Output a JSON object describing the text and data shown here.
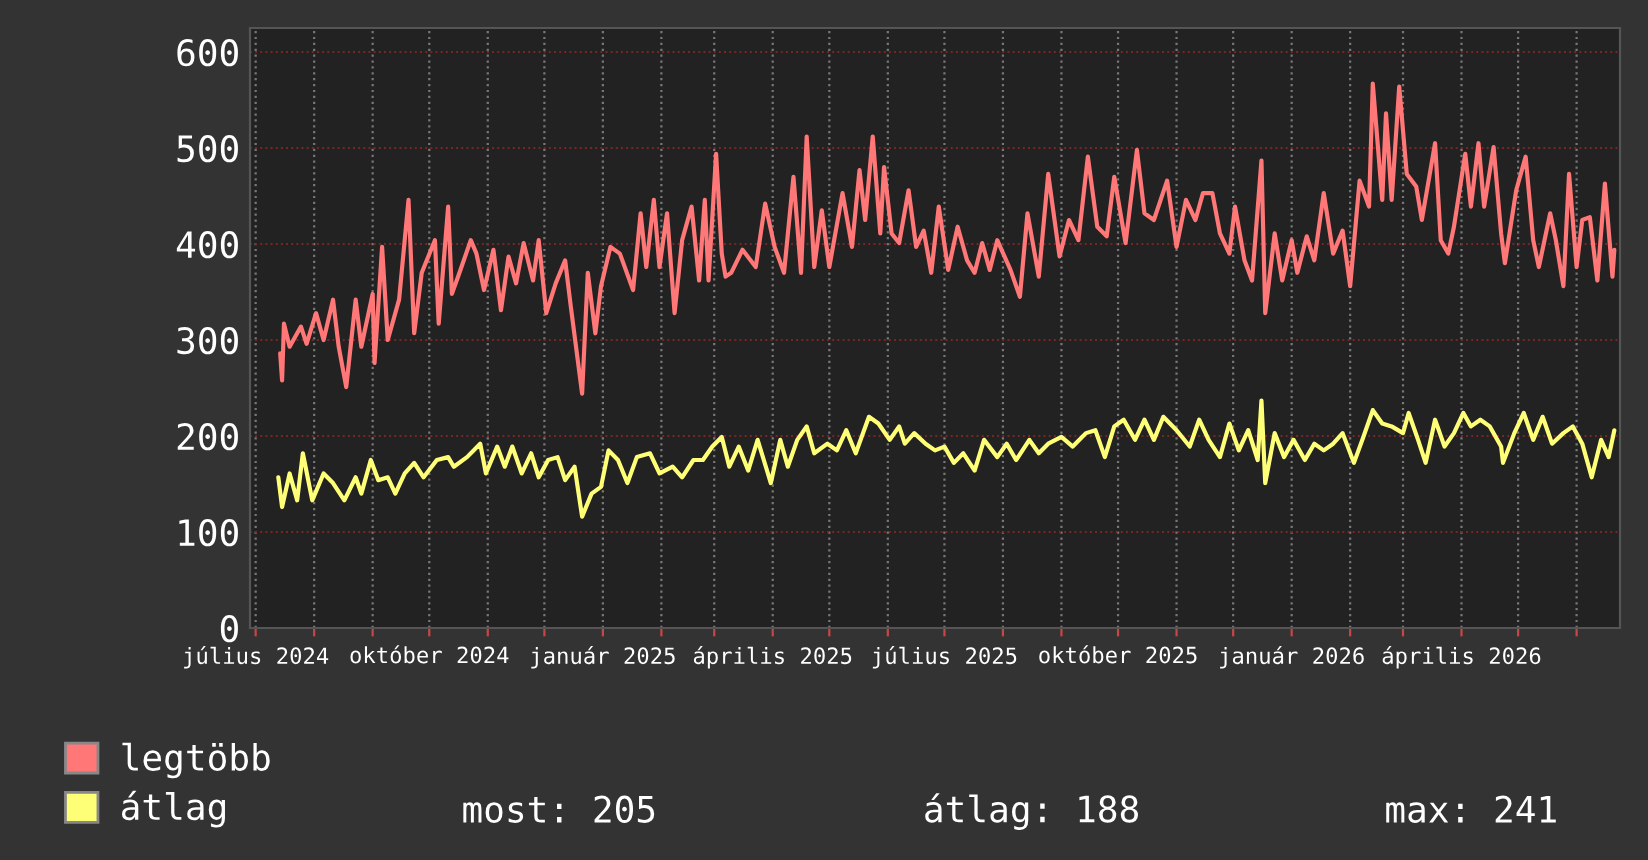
{
  "chart_data": {
    "type": "line",
    "xlim": [
      "2024-06-28",
      "2026-06-24"
    ],
    "ylim": [
      0,
      625
    ],
    "yticks": [
      0,
      100,
      200,
      300,
      400,
      500,
      600
    ],
    "xticks": [
      {
        "value": "2024-07-01",
        "label": "július 2024"
      },
      {
        "value": "2024-08-01",
        "label": null
      },
      {
        "value": "2024-09-01",
        "label": null
      },
      {
        "value": "2024-10-01",
        "label": "október 2024"
      },
      {
        "value": "2024-11-01",
        "label": null
      },
      {
        "value": "2024-12-01",
        "label": null
      },
      {
        "value": "2025-01-01",
        "label": "január 2025"
      },
      {
        "value": "2025-02-01",
        "label": null
      },
      {
        "value": "2025-03-01",
        "label": null
      },
      {
        "value": "2025-04-01",
        "label": "április 2025"
      },
      {
        "value": "2025-05-01",
        "label": null
      },
      {
        "value": "2025-06-01",
        "label": null
      },
      {
        "value": "2025-07-01",
        "label": "július 2025"
      },
      {
        "value": "2025-08-01",
        "label": null
      },
      {
        "value": "2025-09-01",
        "label": null
      },
      {
        "value": "2025-10-01",
        "label": "október 2025"
      },
      {
        "value": "2025-11-01",
        "label": null
      },
      {
        "value": "2025-12-01",
        "label": null
      },
      {
        "value": "2026-01-01",
        "label": "január 2026"
      },
      {
        "value": "2026-02-01",
        "label": null
      },
      {
        "value": "2026-03-01",
        "label": null
      },
      {
        "value": "2026-04-01",
        "label": "április 2026"
      },
      {
        "value": "2026-05-01",
        "label": null
      },
      {
        "value": "2026-06-01",
        "label": null
      }
    ],
    "grid": true,
    "legend": "bottom left",
    "marker": "none",
    "line_style": "solid",
    "annotations": [
      "most: 205",
      "átlag: 188",
      "max: 241"
    ],
    "series": [
      {
        "name": "legtöbb",
        "color": "#ff7777",
        "x": [
          "2024-07-14",
          "2024-07-15",
          "2024-07-16",
          "2024-07-19",
          "2024-07-25",
          "2024-07-28",
          "2024-08-02",
          "2024-08-06",
          "2024-08-11",
          "2024-08-14",
          "2024-08-18",
          "2024-08-23",
          "2024-08-26",
          "2024-09-01",
          "2024-09-02",
          "2024-09-06",
          "2024-09-09",
          "2024-09-15",
          "2024-09-20",
          "2024-09-23",
          "2024-09-27",
          "2024-10-04",
          "2024-10-06",
          "2024-10-11",
          "2024-10-13",
          "2024-10-17",
          "2024-10-23",
          "2024-10-26",
          "2024-10-30",
          "2024-11-04",
          "2024-11-08",
          "2024-11-12",
          "2024-11-16",
          "2024-11-20",
          "2024-11-25",
          "2024-11-28",
          "2024-12-02",
          "2024-12-07",
          "2024-12-12",
          "2024-12-15",
          "2024-12-21",
          "2024-12-24",
          "2024-12-28",
          "2024-12-31",
          "2025-01-05",
          "2025-01-10",
          "2025-01-17",
          "2025-01-21",
          "2025-01-24",
          "2025-01-28",
          "2025-01-31",
          "2025-02-04",
          "2025-02-08",
          "2025-02-12",
          "2025-02-17",
          "2025-02-21",
          "2025-02-24",
          "2025-02-26",
          "2025-03-02",
          "2025-03-05",
          "2025-03-07",
          "2025-03-10",
          "2025-03-16",
          "2025-03-23",
          "2025-03-28",
          "2025-04-02",
          "2025-04-07",
          "2025-04-12",
          "2025-04-16",
          "2025-04-19",
          "2025-04-23",
          "2025-04-27",
          "2025-05-01",
          "2025-05-08",
          "2025-05-13",
          "2025-05-17",
          "2025-05-20",
          "2025-05-24",
          "2025-05-28",
          "2025-05-30",
          "2025-06-03",
          "2025-06-07",
          "2025-06-12",
          "2025-06-16",
          "2025-06-20",
          "2025-06-24",
          "2025-06-28",
          "2025-07-03",
          "2025-07-08",
          "2025-07-13",
          "2025-07-17",
          "2025-07-21",
          "2025-07-25",
          "2025-07-29",
          "2025-08-05",
          "2025-08-10",
          "2025-08-14",
          "2025-08-20",
          "2025-08-25",
          "2025-08-31",
          "2025-09-05",
          "2025-09-10",
          "2025-09-15",
          "2025-09-20",
          "2025-09-25",
          "2025-09-29",
          "2025-10-05",
          "2025-10-11",
          "2025-10-15",
          "2025-10-20",
          "2025-10-27",
          "2025-11-01",
          "2025-11-06",
          "2025-11-11",
          "2025-11-15",
          "2025-11-20",
          "2025-11-24",
          "2025-11-29",
          "2025-12-02",
          "2025-12-07",
          "2025-12-11",
          "2025-12-16",
          "2025-12-18",
          "2025-12-23",
          "2025-12-27",
          "2026-01-01",
          "2026-01-04",
          "2026-01-09",
          "2026-01-13",
          "2026-01-18",
          "2026-01-23",
          "2026-01-28",
          "2026-02-01",
          "2026-02-06",
          "2026-02-11",
          "2026-02-13",
          "2026-02-18",
          "2026-02-20",
          "2026-02-23",
          "2026-02-27",
          "2026-03-03",
          "2026-03-08",
          "2026-03-11",
          "2026-03-18",
          "2026-03-21",
          "2026-03-25",
          "2026-03-28",
          "2026-04-03",
          "2026-04-06",
          "2026-04-10",
          "2026-04-13",
          "2026-04-18",
          "2026-04-22",
          "2026-04-24",
          "2026-04-30",
          "2026-05-05",
          "2026-05-09",
          "2026-05-12",
          "2026-05-18",
          "2026-05-21",
          "2026-05-25",
          "2026-05-28",
          "2026-06-01",
          "2026-06-04",
          "2026-06-08",
          "2026-06-12",
          "2026-06-16",
          "2026-06-20",
          "2026-06-21"
        ],
        "values": [
          286,
          258,
          317,
          293,
          314,
          296,
          328,
          300,
          342,
          293,
          251,
          342,
          293,
          348,
          276,
          397,
          300,
          342,
          446,
          307,
          370,
          404,
          317,
          439,
          348,
          370,
          404,
          390,
          352,
          394,
          331,
          387,
          359,
          401,
          362,
          404,
          328,
          359,
          383,
          335,
          244,
          370,
          307,
          356,
          397,
          390,
          352,
          432,
          376,
          446,
          376,
          432,
          328,
          404,
          439,
          362,
          446,
          362,
          494,
          390,
          366,
          370,
          394,
          376,
          442,
          397,
          370,
          470,
          370,
          512,
          376,
          435,
          376,
          453,
          397,
          477,
          425,
          512,
          411,
          480,
          411,
          401,
          456,
          397,
          414,
          370,
          439,
          373,
          418,
          383,
          370,
          401,
          373,
          404,
          373,
          345,
          432,
          366,
          473,
          387,
          425,
          404,
          491,
          418,
          408,
          470,
          401,
          498,
          432,
          425,
          466,
          397,
          446,
          425,
          453,
          453,
          411,
          390,
          439,
          383,
          362,
          487,
          328,
          411,
          362,
          404,
          370,
          408,
          383,
          453,
          390,
          414,
          356,
          466,
          439,
          567,
          446,
          536,
          446,
          564,
          473,
          460,
          425,
          505,
          404,
          390,
          418,
          494,
          439,
          505,
          439,
          501,
          411,
          380,
          456,
          491,
          404,
          376,
          432,
          404,
          356,
          473,
          376,
          425,
          428,
          362,
          463,
          366,
          394
        ]
      },
      {
        "name": "átlag",
        "color": "#ffff77",
        "x": [
          "2024-07-13",
          "2024-07-15",
          "2024-07-19",
          "2024-07-23",
          "2024-07-26",
          "2024-07-31",
          "2024-08-06",
          "2024-08-11",
          "2024-08-17",
          "2024-08-23",
          "2024-08-26",
          "2024-08-31",
          "2024-09-04",
          "2024-09-09",
          "2024-09-13",
          "2024-09-18",
          "2024-09-23",
          "2024-09-28",
          "2024-10-05",
          "2024-10-11",
          "2024-10-14",
          "2024-10-21",
          "2024-10-28",
          "2024-10-31",
          "2024-11-06",
          "2024-11-10",
          "2024-11-14",
          "2024-11-19",
          "2024-11-24",
          "2024-11-28",
          "2024-12-03",
          "2024-12-08",
          "2024-12-12",
          "2024-12-17",
          "2024-12-21",
          "2024-12-26",
          "2024-12-31",
          "2025-01-04",
          "2025-01-09",
          "2025-01-14",
          "2025-01-19",
          "2025-01-26",
          "2025-01-31",
          "2025-02-07",
          "2025-02-12",
          "2025-02-18",
          "2025-02-23",
          "2025-02-28",
          "2025-03-05",
          "2025-03-09",
          "2025-03-14",
          "2025-03-19",
          "2025-03-24",
          "2025-03-31",
          "2025-04-05",
          "2025-04-09",
          "2025-04-14",
          "2025-04-19",
          "2025-04-23",
          "2025-04-30",
          "2025-05-05",
          "2025-05-10",
          "2025-05-15",
          "2025-05-22",
          "2025-05-27",
          "2025-06-02",
          "2025-06-07",
          "2025-06-10",
          "2025-06-15",
          "2025-06-21",
          "2025-06-26",
          "2025-07-01",
          "2025-07-06",
          "2025-07-11",
          "2025-07-17",
          "2025-07-22",
          "2025-07-29",
          "2025-08-03",
          "2025-08-08",
          "2025-08-15",
          "2025-08-20",
          "2025-08-25",
          "2025-09-01",
          "2025-09-07",
          "2025-09-14",
          "2025-09-19",
          "2025-09-24",
          "2025-09-29",
          "2025-10-04",
          "2025-10-10",
          "2025-10-15",
          "2025-10-20",
          "2025-10-25",
          "2025-11-01",
          "2025-11-08",
          "2025-11-13",
          "2025-11-18",
          "2025-11-24",
          "2025-11-29",
          "2025-12-04",
          "2025-12-09",
          "2025-12-14",
          "2025-12-16",
          "2025-12-18",
          "2025-12-23",
          "2025-12-28",
          "2026-01-02",
          "2026-01-08",
          "2026-01-13",
          "2026-01-18",
          "2026-01-23",
          "2026-01-28",
          "2026-02-03",
          "2026-02-08",
          "2026-02-13",
          "2026-02-18",
          "2026-02-23",
          "2026-03-01",
          "2026-03-04",
          "2026-03-09",
          "2026-03-13",
          "2026-03-18",
          "2026-03-23",
          "2026-03-28",
          "2026-04-02",
          "2026-04-06",
          "2026-04-11",
          "2026-04-16",
          "2026-04-22",
          "2026-04-23",
          "2026-04-29",
          "2026-05-04",
          "2026-05-09",
          "2026-05-14",
          "2026-05-19",
          "2026-05-25",
          "2026-05-30",
          "2026-06-04",
          "2026-06-09",
          "2026-06-14",
          "2026-06-18",
          "2026-06-21"
        ],
        "values": [
          157,
          126,
          161,
          133,
          182,
          133,
          161,
          151,
          133,
          157,
          140,
          175,
          154,
          157,
          140,
          161,
          172,
          157,
          175,
          178,
          168,
          178,
          192,
          161,
          189,
          168,
          189,
          161,
          182,
          157,
          175,
          178,
          154,
          168,
          116,
          140,
          147,
          185,
          175,
          151,
          178,
          182,
          161,
          168,
          157,
          175,
          175,
          189,
          199,
          168,
          189,
          164,
          196,
          151,
          196,
          168,
          196,
          210,
          182,
          192,
          185,
          206,
          182,
          220,
          213,
          196,
          210,
          192,
          203,
          192,
          185,
          189,
          172,
          182,
          164,
          196,
          178,
          192,
          175,
          196,
          182,
          192,
          199,
          189,
          203,
          206,
          178,
          210,
          217,
          196,
          217,
          196,
          220,
          206,
          189,
          217,
          196,
          178,
          213,
          185,
          206,
          175,
          237,
          151,
          203,
          178,
          196,
          175,
          192,
          185,
          192,
          203,
          172,
          199,
          227,
          213,
          210,
          203,
          224,
          196,
          172,
          217,
          189,
          203,
          224,
          210,
          217,
          210,
          189,
          172,
          203,
          224,
          196,
          220,
          192,
          203,
          210,
          192,
          157,
          196,
          178,
          206
        ]
      }
    ]
  }
}
